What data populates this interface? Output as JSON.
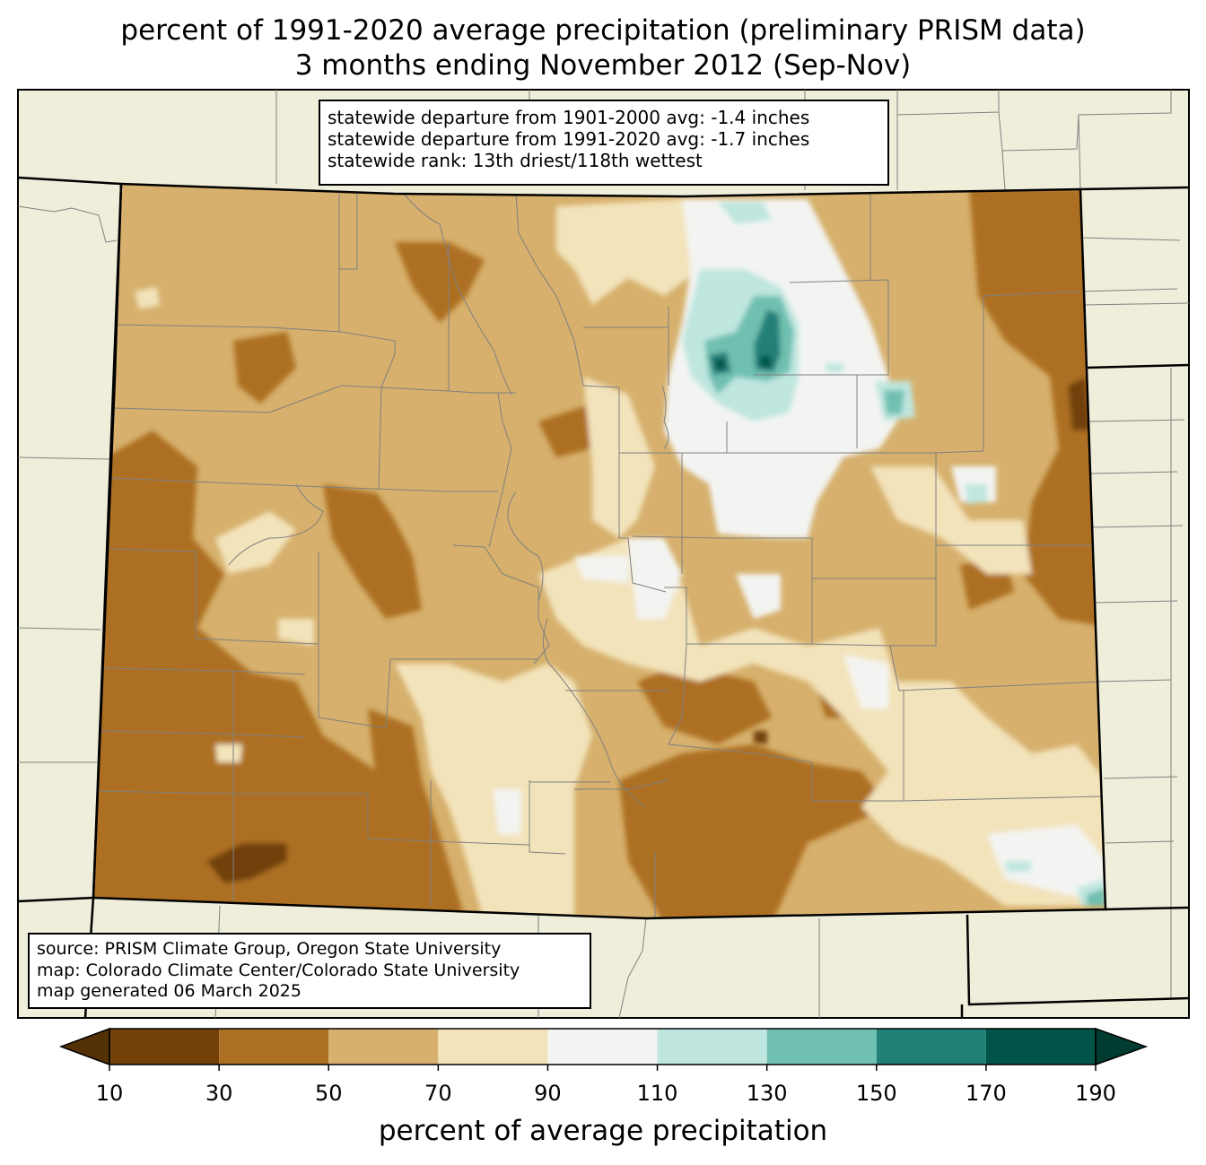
{
  "title": {
    "line1": "percent of 1991-2020 average precipitation (preliminary PRISM data)",
    "line2": "3 months ending November 2012 (Sep-Nov)"
  },
  "stats": {
    "line1": "statewide departure from 1901-2000 avg: -1.4 inches",
    "line2": "statewide departure from 1991-2020 avg: -1.7 inches",
    "line3": "statewide rank: 13th driest/118th wettest"
  },
  "source": {
    "line1": "source: PRISM Climate Group, Oregon State University",
    "line2": "map: Colorado Climate Center/Colorado State University",
    "line3": "map generated 06 March 2025"
  },
  "colorbar": {
    "label": "percent of average precipitation",
    "ticks": [
      "10",
      "30",
      "50",
      "70",
      "90",
      "110",
      "130",
      "150",
      "170",
      "190"
    ],
    "under_color": "#543005",
    "over_color": "#003c30",
    "bins": [
      {
        "from": 10,
        "to": 30,
        "color": "#724009"
      },
      {
        "from": 30,
        "to": 50,
        "color": "#ad6f22"
      },
      {
        "from": 50,
        "to": 70,
        "color": "#d6b06c"
      },
      {
        "from": 70,
        "to": 90,
        "color": "#f3e3bb"
      },
      {
        "from": 90,
        "to": 110,
        "color": "#f3f4f2"
      },
      {
        "from": 110,
        "to": 130,
        "color": "#bfe6df"
      },
      {
        "from": 130,
        "to": 150,
        "color": "#6fc0b1"
      },
      {
        "from": 150,
        "to": 170,
        "color": "#208078"
      },
      {
        "from": 170,
        "to": 190,
        "color": "#00544a"
      }
    ]
  },
  "map_colors": {
    "background": "#efeedb",
    "state_border": "#000000",
    "county_border": "#808080"
  }
}
